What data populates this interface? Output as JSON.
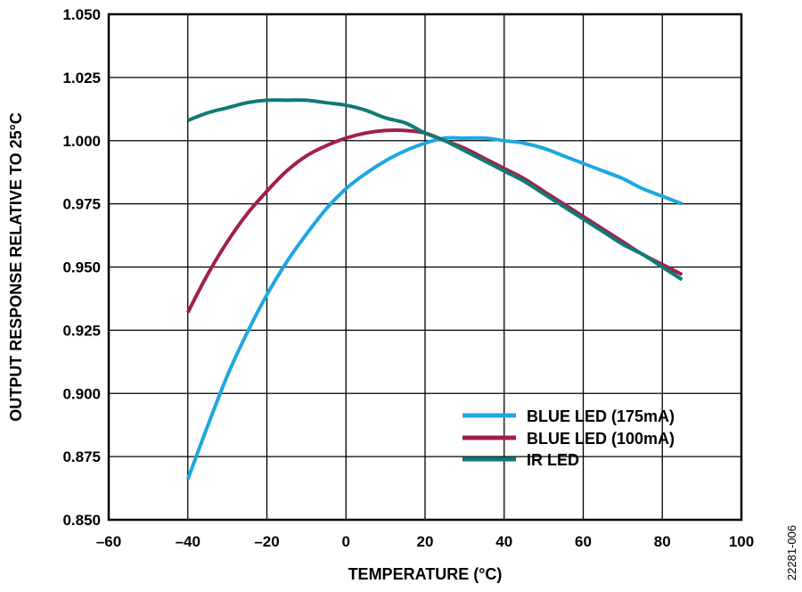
{
  "figure_id": "22281-006",
  "chart_data": {
    "type": "line",
    "title": "",
    "xlabel": "TEMPERATURE (°C)",
    "ylabel": "OUTPUT RESPONSE RELATIVE TO 25°C",
    "xlim": [
      -60,
      100
    ],
    "ylim": [
      0.85,
      1.05
    ],
    "xticks": [
      -60,
      -40,
      -20,
      0,
      20,
      40,
      60,
      80,
      100
    ],
    "xtick_labels": [
      "–60",
      "–40",
      "–20",
      "0",
      "20",
      "40",
      "60",
      "80",
      "100"
    ],
    "yticks": [
      0.85,
      0.875,
      0.9,
      0.925,
      0.95,
      0.975,
      1.0,
      1.025,
      1.05
    ],
    "ytick_labels": [
      "0.850",
      "0.875",
      "0.900",
      "0.925",
      "0.950",
      "0.975",
      "1.000",
      "1.025",
      "1.050"
    ],
    "grid": true,
    "legend_position": "bottom-right",
    "series": [
      {
        "name": "BLUE LED (175mA)",
        "color": "#1ea7e1",
        "x": [
          -40,
          -35,
          -30,
          -25,
          -20,
          -15,
          -10,
          -5,
          0,
          5,
          10,
          15,
          20,
          25,
          30,
          35,
          40,
          45,
          50,
          55,
          60,
          65,
          70,
          75,
          80,
          85
        ],
        "y": [
          0.866,
          0.887,
          0.907,
          0.924,
          0.939,
          0.952,
          0.963,
          0.973,
          0.981,
          0.987,
          0.992,
          0.996,
          0.999,
          1.001,
          1.001,
          1.001,
          1.0,
          0.999,
          0.997,
          0.994,
          0.991,
          0.988,
          0.985,
          0.981,
          0.978,
          0.975
        ]
      },
      {
        "name": "BLUE LED (100mA)",
        "color": "#a31f4a",
        "x": [
          -40,
          -35,
          -30,
          -25,
          -20,
          -15,
          -10,
          -5,
          0,
          5,
          10,
          15,
          20,
          25,
          30,
          35,
          40,
          45,
          50,
          55,
          60,
          65,
          70,
          75,
          80,
          85
        ],
        "y": [
          0.932,
          0.947,
          0.96,
          0.971,
          0.98,
          0.988,
          0.994,
          0.998,
          1.001,
          1.003,
          1.004,
          1.004,
          1.003,
          1.0,
          0.997,
          0.993,
          0.989,
          0.985,
          0.98,
          0.975,
          0.97,
          0.965,
          0.96,
          0.955,
          0.951,
          0.947
        ]
      },
      {
        "name": "IR LED",
        "color": "#0f7a76",
        "x": [
          -40,
          -35,
          -30,
          -25,
          -20,
          -15,
          -10,
          -5,
          0,
          5,
          10,
          15,
          20,
          25,
          30,
          35,
          40,
          45,
          50,
          55,
          60,
          65,
          70,
          75,
          80,
          85
        ],
        "y": [
          1.008,
          1.011,
          1.013,
          1.015,
          1.016,
          1.016,
          1.016,
          1.015,
          1.014,
          1.012,
          1.009,
          1.007,
          1.003,
          1.0,
          0.996,
          0.992,
          0.988,
          0.984,
          0.979,
          0.974,
          0.969,
          0.964,
          0.959,
          0.955,
          0.95,
          0.945
        ]
      }
    ]
  }
}
